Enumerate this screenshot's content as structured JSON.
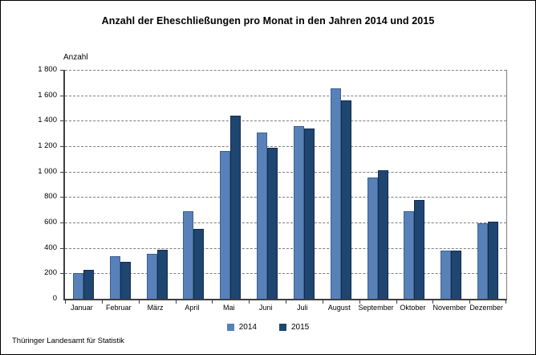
{
  "chart_data": {
    "type": "bar",
    "title": "Anzahl der Eheschließungen pro Monat in den Jahren 2014 und 2015",
    "ylabel": "Anzahl",
    "xlabel": "",
    "categories": [
      "Januar",
      "Februar",
      "März",
      "April",
      "Mai",
      "Juni",
      "Juli",
      "August",
      "September",
      "Oktober",
      "November",
      "Dezember"
    ],
    "series": [
      {
        "name": "2014",
        "color": "#5881B9",
        "border_color": "#3A618F",
        "values": [
          205,
          335,
          355,
          690,
          1160,
          1310,
          1360,
          1655,
          955,
          690,
          380,
          595
        ]
      },
      {
        "name": "2015",
        "color": "#1F4571",
        "border_color": "#132C4D",
        "values": [
          230,
          290,
          385,
          550,
          1440,
          1190,
          1340,
          1560,
          1010,
          780,
          380,
          605
        ]
      }
    ],
    "ylim": [
      0,
      1800
    ],
    "ytick_step": 200,
    "ytick_labels": [
      "0",
      "200",
      "400",
      "600",
      "800",
      "1 000",
      "1 200",
      "1 400",
      "1 600",
      "1 800"
    ],
    "grid": "horizontal-dashed",
    "legend_position": "bottom"
  },
  "legend": {
    "items": [
      {
        "label": "2014",
        "color": "#5881B9"
      },
      {
        "label": "2015",
        "color": "#1F4571"
      }
    ]
  },
  "footer": {
    "source": "Thüringer Landesamt für Statistik"
  }
}
